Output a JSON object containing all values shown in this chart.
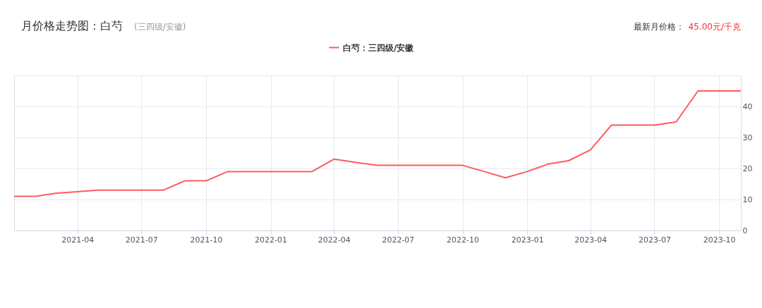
{
  "chart_data": {
    "type": "line",
    "title": "月价格走势图：白芍",
    "subtitle": "(三四级/安徽)",
    "annotations": [
      "最新月价格：",
      "45.00元/千克"
    ],
    "x": [
      "2021-01",
      "2021-02",
      "2021-03",
      "2021-04",
      "2021-05",
      "2021-06",
      "2021-07",
      "2021-08",
      "2021-09",
      "2021-10",
      "2021-11",
      "2021-12",
      "2022-01",
      "2022-02",
      "2022-03",
      "2022-04",
      "2022-05",
      "2022-06",
      "2022-07",
      "2022-08",
      "2022-09",
      "2022-10",
      "2022-11",
      "2022-12",
      "2023-01",
      "2023-02",
      "2023-03",
      "2023-04",
      "2023-05",
      "2023-06",
      "2023-07",
      "2023-08",
      "2023-09",
      "2023-10",
      "2023-11"
    ],
    "series": [
      {
        "name": "白芍：三四级/安徽",
        "color": "#ff5a5f",
        "values": [
          11,
          11,
          12,
          12.5,
          13,
          13,
          13,
          13,
          16,
          16,
          19,
          19,
          19,
          19,
          19,
          23,
          22,
          21,
          21,
          21,
          21,
          21,
          19,
          17,
          19,
          21.5,
          22.5,
          26,
          34,
          34,
          34,
          35,
          45,
          45,
          45
        ]
      }
    ],
    "xlim": [
      "2021-01",
      "2023-11"
    ],
    "xticks": [
      "2021-04",
      "2021-07",
      "2021-10",
      "2022-01",
      "2022-04",
      "2022-07",
      "2022-10",
      "2023-01",
      "2023-04",
      "2023-07",
      "2023-10"
    ],
    "ylim": [
      0,
      50
    ],
    "yticks": [
      0,
      10,
      20,
      30,
      40,
      {
        "value": 50,
        "label": null
      }
    ],
    "grid": true,
    "legend": "top",
    "marker": "none",
    "line_style": "solid"
  }
}
